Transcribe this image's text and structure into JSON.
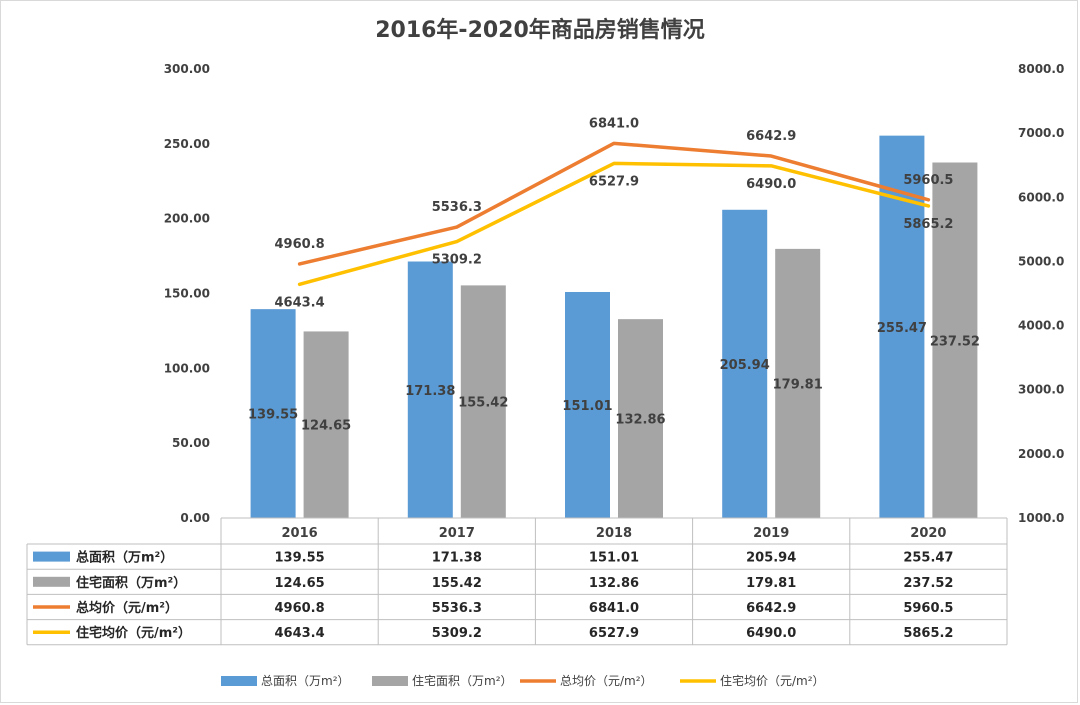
{
  "chart_data": {
    "type": "bar",
    "title": "2016年-2020年商品房销售情况",
    "categories": [
      "2016",
      "2017",
      "2018",
      "2019",
      "2020"
    ],
    "series": [
      {
        "name": "总面积（万m²）",
        "type": "bar",
        "axis": "left",
        "color": "#5B9BD5",
        "values": [
          139.55,
          171.38,
          151.01,
          205.94,
          255.47
        ],
        "labels": [
          "139.55",
          "171.38",
          "151.01",
          "205.94",
          "255.47"
        ]
      },
      {
        "name": "住宅面积（万m²）",
        "type": "bar",
        "axis": "left",
        "color": "#A5A5A5",
        "values": [
          124.65,
          155.42,
          132.86,
          179.81,
          237.52
        ],
        "labels": [
          "124.65",
          "155.42",
          "132.86",
          "179.81",
          "237.52"
        ]
      },
      {
        "name": "总均价（元/m²）",
        "type": "line",
        "axis": "right",
        "color": "#ED7D31",
        "values": [
          4960.8,
          5536.3,
          6841.0,
          6642.9,
          5960.5
        ],
        "labels": [
          "4960.8",
          "5536.3",
          "6841.0",
          "6642.9",
          "5960.5"
        ]
      },
      {
        "name": "住宅均价（元/m²）",
        "type": "line",
        "axis": "right",
        "color": "#FFC000",
        "values": [
          4643.4,
          5309.2,
          6527.9,
          6490.0,
          5865.2
        ],
        "labels": [
          "4643.4",
          "5309.2",
          "6527.9",
          "6490.0",
          "5865.2"
        ]
      }
    ],
    "y_left": {
      "range": [
        0,
        300
      ],
      "ticks": [
        "0.00",
        "50.00",
        "100.00",
        "150.00",
        "200.00",
        "250.00",
        "300.00"
      ]
    },
    "y_right": {
      "range": [
        1000,
        8000
      ],
      "ticks": [
        "1000.0",
        "2000.0",
        "3000.0",
        "4000.0",
        "5000.0",
        "6000.0",
        "7000.0",
        "8000.0"
      ]
    },
    "grid": false,
    "data_table": true,
    "legend": "bottom"
  }
}
